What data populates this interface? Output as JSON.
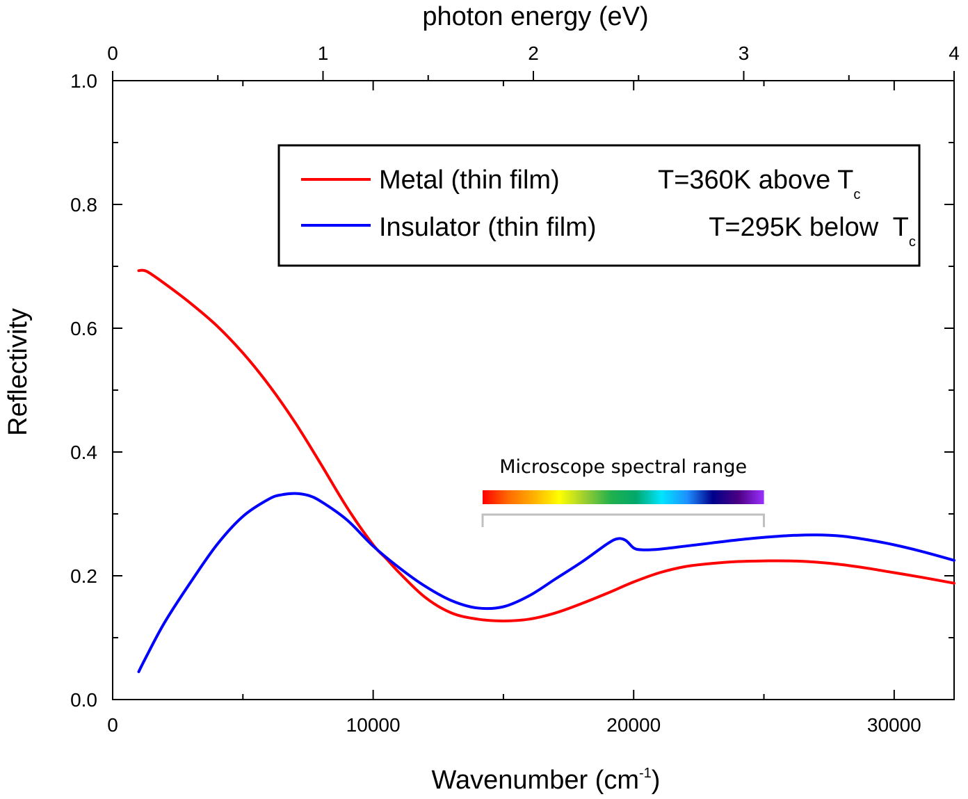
{
  "chart_data": {
    "type": "line",
    "xlabel": "Wavenumber (cm",
    "xlabel_sup": "-1",
    "xlabel_end": ")",
    "ylabel": "Reflectivity",
    "top_label": "photon energy (eV)",
    "xlim": [
      0,
      32300
    ],
    "ylim": [
      0,
      1.0
    ],
    "top_lim": [
      0,
      4
    ],
    "x_ticks": [
      "0",
      "10000",
      "20000",
      "30000"
    ],
    "y_ticks": [
      "0.0",
      "0.2",
      "0.4",
      "0.6",
      "0.8",
      "1.0"
    ],
    "top_ticks": [
      "0",
      "1",
      "2",
      "3",
      "4"
    ],
    "series": [
      {
        "name": "Metal (thin film)",
        "note": "T=360K above T",
        "note_sub": "c",
        "color": "#ff0000",
        "x": [
          1000,
          1300,
          2000,
          3000,
          4000,
          5000,
          6000,
          7000,
          8000,
          9000,
          10000,
          10500,
          11000,
          12000,
          13000,
          14000,
          15000,
          16000,
          17000,
          18000,
          19000,
          20000,
          21000,
          22000,
          23000,
          24000,
          25000,
          26000,
          27000,
          28000,
          29000,
          30000,
          31000,
          32300
        ],
        "y": [
          0.693,
          0.692,
          0.672,
          0.64,
          0.604,
          0.56,
          0.508,
          0.448,
          0.38,
          0.31,
          0.25,
          0.228,
          0.205,
          0.165,
          0.14,
          0.13,
          0.127,
          0.13,
          0.14,
          0.155,
          0.172,
          0.19,
          0.205,
          0.215,
          0.22,
          0.223,
          0.224,
          0.224,
          0.222,
          0.218,
          0.212,
          0.205,
          0.198,
          0.188
        ]
      },
      {
        "name": "Insulator (thin film)",
        "note": "T=295K below  T",
        "note_sub": "c",
        "color": "#0000ff",
        "x": [
          1000,
          1300,
          2000,
          3000,
          4000,
          5000,
          6000,
          6500,
          7000,
          7500,
          8000,
          9000,
          10000,
          11000,
          12000,
          13000,
          14000,
          15000,
          16000,
          17000,
          18000,
          19000,
          19400,
          19700,
          20000,
          20300,
          21000,
          22000,
          23000,
          24000,
          25000,
          26000,
          27000,
          28000,
          29000,
          30000,
          31000,
          32300
        ],
        "y": [
          0.045,
          0.07,
          0.125,
          0.19,
          0.25,
          0.296,
          0.324,
          0.331,
          0.333,
          0.33,
          0.32,
          0.29,
          0.248,
          0.213,
          0.183,
          0.16,
          0.148,
          0.15,
          0.168,
          0.195,
          0.222,
          0.252,
          0.26,
          0.257,
          0.245,
          0.242,
          0.243,
          0.248,
          0.253,
          0.258,
          0.262,
          0.265,
          0.266,
          0.264,
          0.258,
          0.25,
          0.24,
          0.225
        ]
      }
    ],
    "annotation": {
      "text": "Microscope spectral range",
      "x_start": 14200,
      "x_end": 25000
    },
    "spectrum_colors": [
      "#ff0000",
      "#ff6a00",
      "#ffb000",
      "#ffff00",
      "#9acd32",
      "#22b14c",
      "#00a86b",
      "#00e5ff",
      "#1e90ff",
      "#00008b",
      "#4b0082",
      "#9b30ff"
    ],
    "bracket_color": "#c0c0c0"
  }
}
